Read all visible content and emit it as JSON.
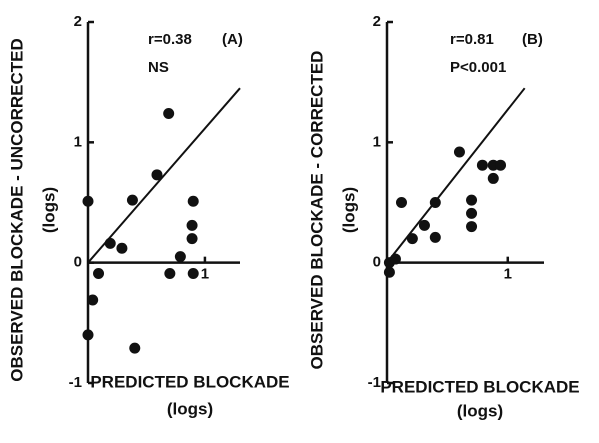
{
  "chart_data": [
    {
      "type": "scatter",
      "annotations": [
        "r=0.38",
        "NS",
        "(A)"
      ],
      "ylabel": "OBSERVED BLOCKADE - UNCORRECTED",
      "ylabel_unit": "(logs)",
      "xlabel": "PREDICTED BLOCKADE",
      "xlabel_unit": "(logs)",
      "xlim": [
        0,
        1.3
      ],
      "ylim": [
        -1,
        2
      ],
      "xticks": [
        1
      ],
      "yticks": [
        -1,
        0,
        1,
        2
      ],
      "series": [
        {
          "color": "#111111",
          "x": [
            0,
            0.04,
            0,
            0.09,
            0.19,
            0.29,
            0.38,
            0.4,
            0.59,
            0.69,
            0.7,
            0.79,
            0.9,
            0.89,
            0.89,
            0.9
          ],
          "values": [
            0.51,
            -0.31,
            -0.6,
            -0.09,
            0.16,
            0.12,
            0.52,
            -0.71,
            0.73,
            1.24,
            -0.09,
            0.05,
            0.51,
            0.31,
            0.2,
            -0.09
          ]
        }
      ],
      "line": {
        "x": [
          0,
          1.3
        ],
        "y": [
          0,
          1.45
        ]
      }
    },
    {
      "type": "scatter",
      "annotations": [
        "r=0.81",
        "P<0.001",
        "(B)"
      ],
      "ylabel": "OBSERVED BLOCKADE - CORRECTED",
      "ylabel_unit": "(logs)",
      "xlabel": "PREDICTED BLOCKADE",
      "xlabel_unit": "(logs)",
      "xlim": [
        0,
        1.3
      ],
      "ylim": [
        -1,
        2
      ],
      "xticks": [
        1
      ],
      "yticks": [
        -1,
        0,
        1,
        2
      ],
      "series": [
        {
          "color": "#111111",
          "x": [
            0.02,
            0.02,
            0.07,
            0.12,
            0.21,
            0.31,
            0.4,
            0.4,
            0.6,
            0.7,
            0.7,
            0.7,
            0.79,
            0.88,
            0.94,
            0.88
          ],
          "values": [
            -0.08,
            0,
            0.03,
            0.5,
            0.2,
            0.31,
            0.5,
            0.21,
            0.92,
            0.52,
            0.41,
            0.3,
            0.81,
            0.81,
            0.81,
            0.7
          ]
        }
      ],
      "line": {
        "x": [
          0,
          1.14
        ],
        "y": [
          0,
          1.45
        ]
      }
    }
  ]
}
